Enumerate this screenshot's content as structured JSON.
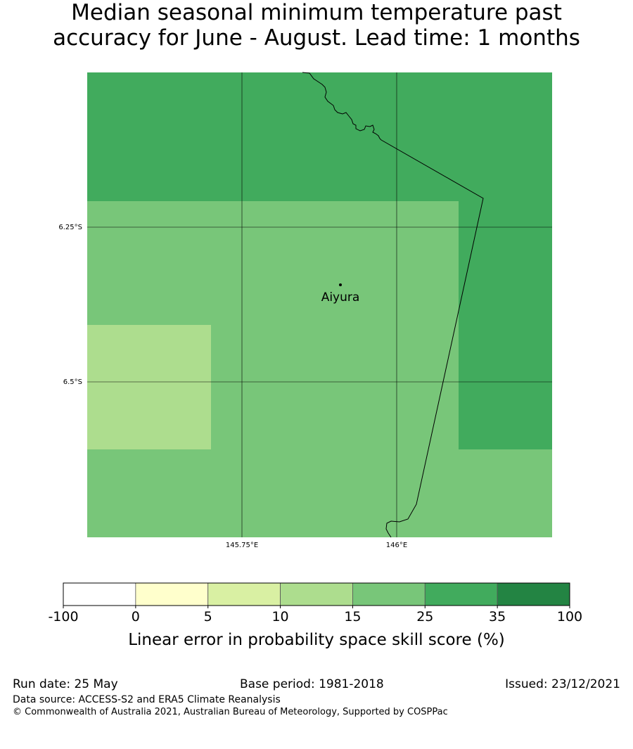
{
  "title": {
    "line1": "Median seasonal minimum temperature past",
    "line2": "accuracy for June - August. Lead time: 1 months"
  },
  "map": {
    "lat_labels": [
      "6.25°S",
      "6.5°S"
    ],
    "lon_labels": [
      "145.75°E",
      "146°E"
    ],
    "location": {
      "name": "Aiyura"
    },
    "grid_values": [
      [
        30,
        30,
        30,
        30,
        30,
        30
      ],
      [
        20,
        20,
        20,
        30,
        30,
        40
      ],
      [
        12,
        20,
        20,
        30,
        30,
        40
      ],
      [
        12,
        20,
        20,
        30,
        30,
        30
      ],
      [
        20,
        20,
        20,
        20,
        20,
        30
      ]
    ]
  },
  "colorbar": {
    "ticks": [
      "-100",
      "0",
      "5",
      "10",
      "15",
      "25",
      "35",
      "100"
    ],
    "colors": [
      "#ffffff",
      "#ffffcc",
      "#d9f0a3",
      "#addd8e",
      "#78c679",
      "#41ab5d",
      "#238443"
    ],
    "label": "Linear error in probability space skill score (%)"
  },
  "footer": {
    "run_date": "Run date: 25 May",
    "base_period": "Base period: 1981-2018",
    "issued": "Issued: 23/12/2021",
    "data_source": "Data source: ACCESS-S2 and ERA5 Climate Reanalysis",
    "copyright": "© Commonwealth of Australia 2021, Australian Bureau of Meteorology, Supported by COSPPac"
  }
}
